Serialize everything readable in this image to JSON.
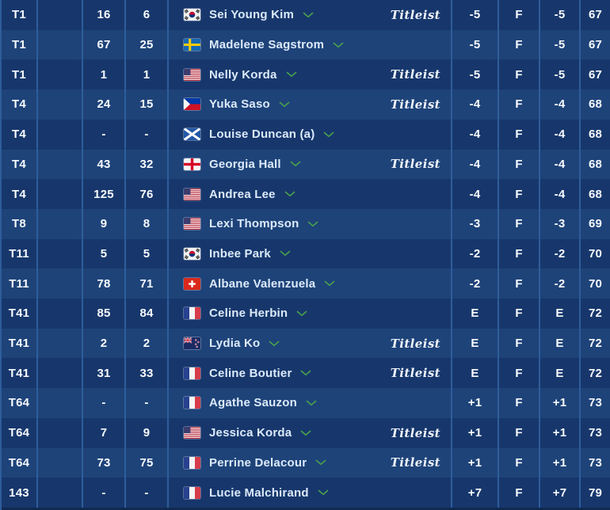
{
  "leaderboard": {
    "sponsor_logo_text": "Titleist",
    "rows": [
      {
        "position": "T1",
        "movement": "",
        "stat1": "16",
        "stat2": "6",
        "flag": "kr",
        "player": "Sei Young Kim",
        "sponsor": "Titleist",
        "total": "-5",
        "thru": "F",
        "today": "-5",
        "round": "67"
      },
      {
        "position": "T1",
        "movement": "",
        "stat1": "67",
        "stat2": "25",
        "flag": "se",
        "player": "Madelene Sagstrom",
        "sponsor": "",
        "total": "-5",
        "thru": "F",
        "today": "-5",
        "round": "67"
      },
      {
        "position": "T1",
        "movement": "",
        "stat1": "1",
        "stat2": "1",
        "flag": "us",
        "player": "Nelly Korda",
        "sponsor": "Titleist",
        "total": "-5",
        "thru": "F",
        "today": "-5",
        "round": "67"
      },
      {
        "position": "T4",
        "movement": "",
        "stat1": "24",
        "stat2": "15",
        "flag": "ph",
        "player": "Yuka Saso",
        "sponsor": "Titleist",
        "total": "-4",
        "thru": "F",
        "today": "-4",
        "round": "68"
      },
      {
        "position": "T4",
        "movement": "",
        "stat1": "-",
        "stat2": "-",
        "flag": "sct",
        "player": "Louise Duncan (a)",
        "sponsor": "",
        "total": "-4",
        "thru": "F",
        "today": "-4",
        "round": "68"
      },
      {
        "position": "T4",
        "movement": "",
        "stat1": "43",
        "stat2": "32",
        "flag": "eng",
        "player": "Georgia Hall",
        "sponsor": "Titleist",
        "total": "-4",
        "thru": "F",
        "today": "-4",
        "round": "68"
      },
      {
        "position": "T4",
        "movement": "",
        "stat1": "125",
        "stat2": "76",
        "flag": "us",
        "player": "Andrea Lee",
        "sponsor": "",
        "total": "-4",
        "thru": "F",
        "today": "-4",
        "round": "68"
      },
      {
        "position": "T8",
        "movement": "",
        "stat1": "9",
        "stat2": "8",
        "flag": "us",
        "player": "Lexi Thompson",
        "sponsor": "",
        "total": "-3",
        "thru": "F",
        "today": "-3",
        "round": "69"
      },
      {
        "position": "T11",
        "movement": "",
        "stat1": "5",
        "stat2": "5",
        "flag": "kr",
        "player": "Inbee Park",
        "sponsor": "",
        "total": "-2",
        "thru": "F",
        "today": "-2",
        "round": "70"
      },
      {
        "position": "T11",
        "movement": "",
        "stat1": "78",
        "stat2": "71",
        "flag": "ch",
        "player": "Albane Valenzuela",
        "sponsor": "",
        "total": "-2",
        "thru": "F",
        "today": "-2",
        "round": "70"
      },
      {
        "position": "T41",
        "movement": "",
        "stat1": "85",
        "stat2": "84",
        "flag": "fr",
        "player": "Celine Herbin",
        "sponsor": "",
        "total": "E",
        "thru": "F",
        "today": "E",
        "round": "72"
      },
      {
        "position": "T41",
        "movement": "",
        "stat1": "2",
        "stat2": "2",
        "flag": "nz",
        "player": "Lydia Ko",
        "sponsor": "Titleist",
        "total": "E",
        "thru": "F",
        "today": "E",
        "round": "72"
      },
      {
        "position": "T41",
        "movement": "",
        "stat1": "31",
        "stat2": "33",
        "flag": "fr",
        "player": "Celine Boutier",
        "sponsor": "Titleist",
        "total": "E",
        "thru": "F",
        "today": "E",
        "round": "72"
      },
      {
        "position": "T64",
        "movement": "",
        "stat1": "-",
        "stat2": "-",
        "flag": "fr",
        "player": "Agathe Sauzon",
        "sponsor": "",
        "total": "+1",
        "thru": "F",
        "today": "+1",
        "round": "73"
      },
      {
        "position": "T64",
        "movement": "",
        "stat1": "7",
        "stat2": "9",
        "flag": "us",
        "player": "Jessica Korda",
        "sponsor": "Titleist",
        "total": "+1",
        "thru": "F",
        "today": "+1",
        "round": "73"
      },
      {
        "position": "T64",
        "movement": "",
        "stat1": "73",
        "stat2": "75",
        "flag": "fr",
        "player": "Perrine Delacour",
        "sponsor": "Titleist",
        "total": "+1",
        "thru": "F",
        "today": "+1",
        "round": "73"
      },
      {
        "position": "143",
        "movement": "",
        "stat1": "-",
        "stat2": "-",
        "flag": "fr",
        "player": "Lucie Malchirand",
        "sponsor": "",
        "total": "+7",
        "thru": "F",
        "today": "+7",
        "round": "79"
      }
    ]
  },
  "colors": {
    "row_dark": "#17376c",
    "row_light": "#1e4379",
    "divider": "#2e5d9a",
    "name_text": "#dceafa",
    "score_text": "#f8fbff",
    "chevron_green": "#4aa34b",
    "bottom_strip": "#122a52"
  }
}
